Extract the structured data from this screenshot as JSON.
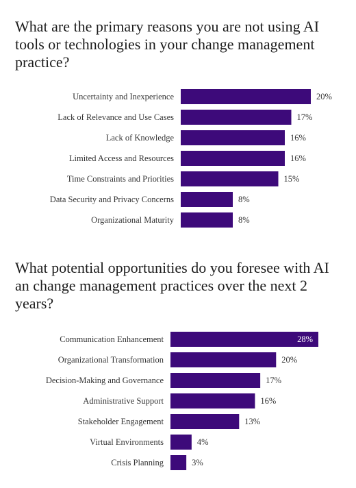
{
  "chart_data": [
    {
      "type": "bar",
      "orientation": "horizontal",
      "title": "What are the primary reasons you are not using AI tools or technologies in your change management practice?",
      "categories": [
        "Uncertainty and Inexperience",
        "Lack of Relevance and Use Cases",
        "Lack of Knowledge",
        "Limited Access and Resources",
        "Time Constraints and Priorities",
        "Data Security and Privacy Concerns",
        "Organizational Maturity"
      ],
      "values": [
        20,
        17,
        16,
        16,
        15,
        8,
        8
      ],
      "value_labels": [
        "20%",
        "17%",
        "16%",
        "16%",
        "15%",
        "8%",
        "8%"
      ],
      "xlim": [
        0,
        20
      ],
      "grid": false,
      "bar_color": "#3d0a7a"
    },
    {
      "type": "bar",
      "orientation": "horizontal",
      "title": "What potential opportunities do you foresee with AI an change management practices over the next 2 years?",
      "categories": [
        "Communication Enhancement",
        "Organizational Transformation",
        "Decision-Making and Governance",
        "Administrative Support",
        "Stakeholder Engagement",
        "Virtual Environments",
        "Crisis Planning"
      ],
      "values": [
        28,
        20,
        17,
        16,
        13,
        4,
        3
      ],
      "value_labels": [
        "28%",
        "20%",
        "17%",
        "16%",
        "13%",
        "4%",
        "3%"
      ],
      "xlim": [
        0,
        28
      ],
      "grid": false,
      "bar_color": "#3d0a7a"
    }
  ]
}
